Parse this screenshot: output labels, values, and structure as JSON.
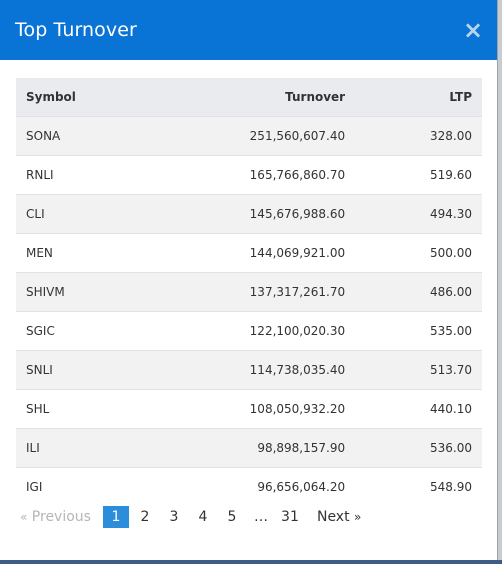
{
  "modal": {
    "title": "Top Turnover",
    "close_label": "×"
  },
  "table": {
    "headers": {
      "symbol": "Symbol",
      "turnover": "Turnover",
      "ltp": "LTP"
    },
    "rows": [
      {
        "symbol": "SONA",
        "turnover": "251,560,607.40",
        "ltp": "328.00"
      },
      {
        "symbol": "RNLI",
        "turnover": "165,766,860.70",
        "ltp": "519.60"
      },
      {
        "symbol": "CLI",
        "turnover": "145,676,988.60",
        "ltp": "494.30"
      },
      {
        "symbol": "MEN",
        "turnover": "144,069,921.00",
        "ltp": "500.00"
      },
      {
        "symbol": "SHIVM",
        "turnover": "137,317,261.70",
        "ltp": "486.00"
      },
      {
        "symbol": "SGIC",
        "turnover": "122,100,020.30",
        "ltp": "535.00"
      },
      {
        "symbol": "SNLI",
        "turnover": "114,738,035.40",
        "ltp": "513.70"
      },
      {
        "symbol": "SHL",
        "turnover": "108,050,932.20",
        "ltp": "440.10"
      },
      {
        "symbol": "ILI",
        "turnover": "98,898,157.90",
        "ltp": "536.00"
      },
      {
        "symbol": "IGI",
        "turnover": "96,656,064.20",
        "ltp": "548.90"
      }
    ]
  },
  "pagination": {
    "prev_icon": "«",
    "prev_label": "Previous",
    "pages": [
      "1",
      "2",
      "3",
      "4",
      "5"
    ],
    "ellipsis": "…",
    "last_page": "31",
    "next_label": "Next",
    "next_icon": "»",
    "current": "1"
  },
  "colors": {
    "header_bg": "#0a74d6",
    "active_page": "#2c8ddb"
  }
}
